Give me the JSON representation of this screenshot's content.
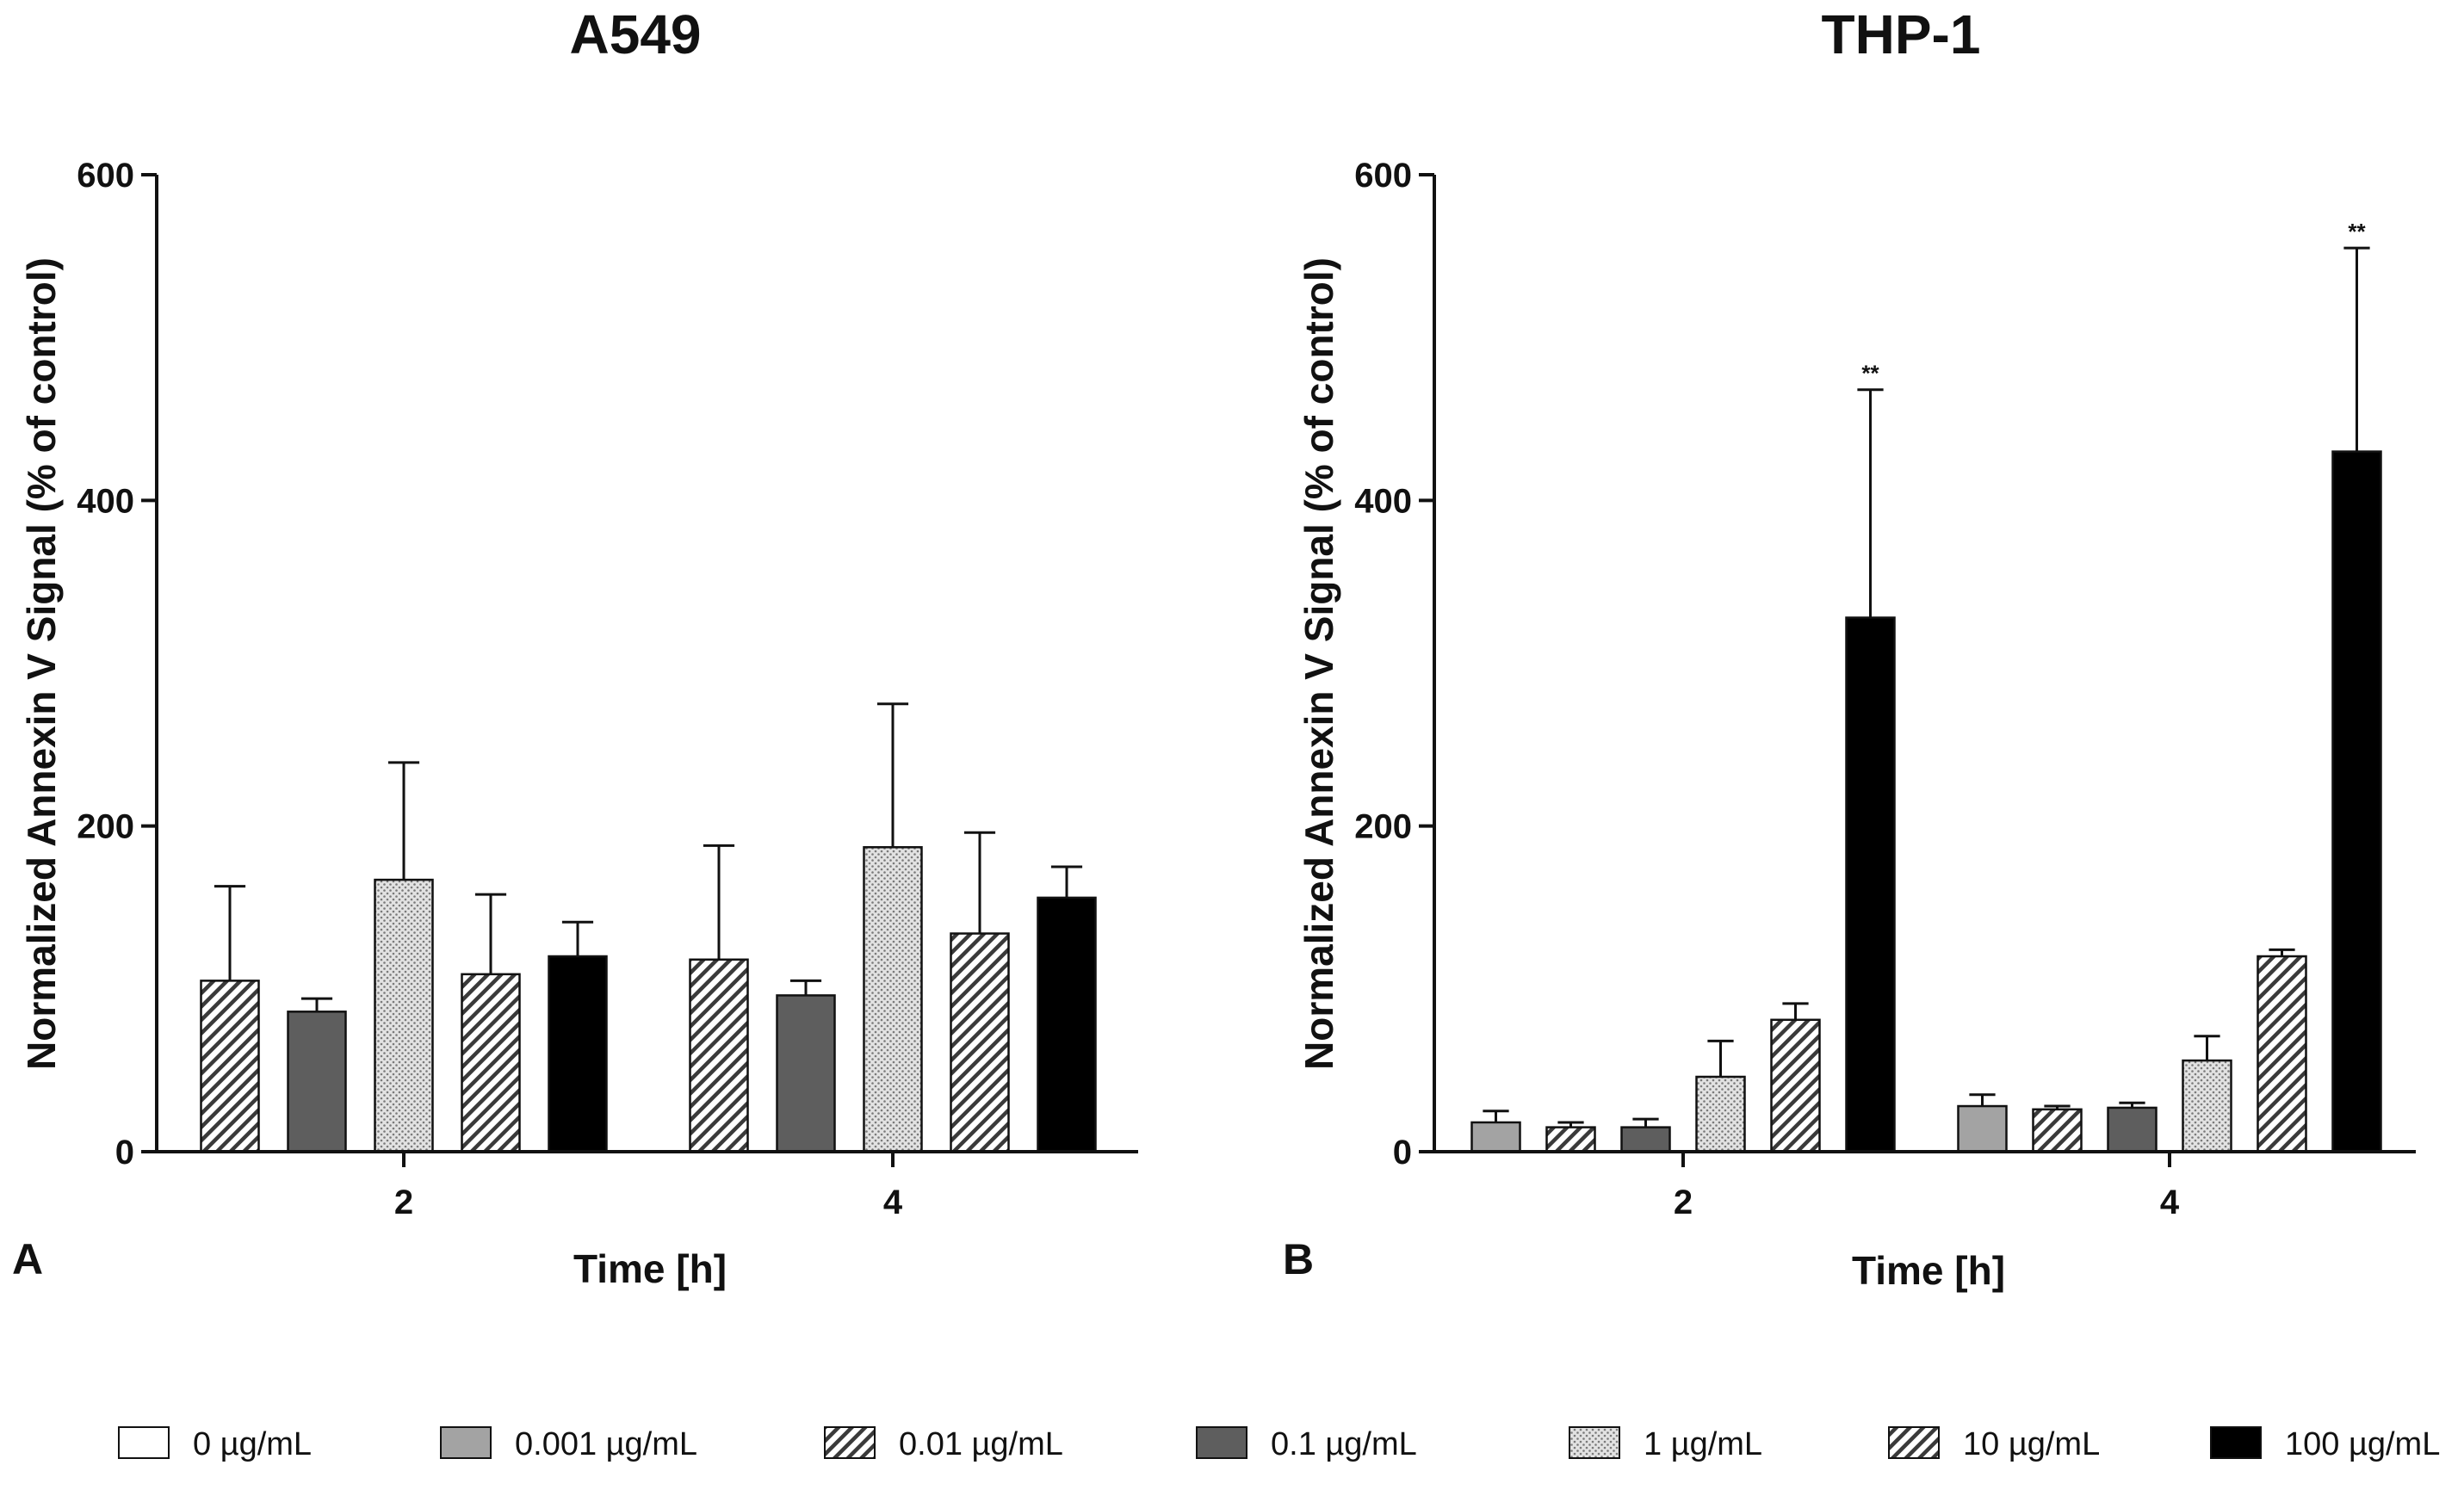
{
  "legend": [
    {
      "label": "0 µg/mL",
      "style": "white"
    },
    {
      "label": "0.001 µg/mL",
      "style": "lightgray"
    },
    {
      "label": "0.01 µg/mL",
      "style": "hatch"
    },
    {
      "label": "0.1 µg/mL",
      "style": "darkgray"
    },
    {
      "label": "1 µg/mL",
      "style": "dots"
    },
    {
      "label": "10 µg/mL",
      "style": "hatch"
    },
    {
      "label": "100 µg/mL",
      "style": "black"
    }
  ],
  "colors": {
    "white": "#ffffff",
    "lightgray": "#a3a3a3",
    "darkgray": "#5e5e5e",
    "black": "#000000",
    "hatch_line": "#3a3a3a",
    "dots_bg": "#e2e2e2",
    "axis": "#111111"
  },
  "chart_data": [
    {
      "type": "bar",
      "panel": "A",
      "title": "A549",
      "xlabel": "Time [h]",
      "ylabel": "Normalized Annexin V Signal (% of control)",
      "categories": [
        "2",
        "4"
      ],
      "ylim": [
        0,
        600
      ],
      "yticks": [
        0,
        200,
        400,
        600
      ],
      "series": [
        {
          "name": "0.01 µg/mL",
          "style": "hatch",
          "values": [
            105,
            118
          ],
          "errors": [
            58,
            70
          ],
          "sig": [
            "",
            ""
          ]
        },
        {
          "name": "0.1 µg/mL",
          "style": "darkgray",
          "values": [
            86,
            96
          ],
          "errors": [
            8,
            9
          ],
          "sig": [
            "",
            ""
          ]
        },
        {
          "name": "1 µg/mL",
          "style": "dots",
          "values": [
            167,
            187
          ],
          "errors": [
            72,
            88
          ],
          "sig": [
            "",
            ""
          ]
        },
        {
          "name": "10 µg/mL",
          "style": "hatch",
          "values": [
            109,
            134
          ],
          "errors": [
            49,
            62
          ],
          "sig": [
            "",
            ""
          ]
        },
        {
          "name": "100 µg/mL",
          "style": "black",
          "values": [
            120,
            156
          ],
          "errors": [
            21,
            19
          ],
          "sig": [
            "",
            ""
          ]
        }
      ]
    },
    {
      "type": "bar",
      "panel": "B",
      "title": "THP-1",
      "xlabel": "Time [h]",
      "ylabel": "Normalized Annexin V Signal (% of control)",
      "categories": [
        "2",
        "4"
      ],
      "ylim": [
        0,
        600
      ],
      "yticks": [
        0,
        200,
        400,
        600
      ],
      "series": [
        {
          "name": "0.001 µg/mL",
          "style": "lightgray",
          "values": [
            18,
            28
          ],
          "errors": [
            7,
            7
          ],
          "sig": [
            "",
            ""
          ]
        },
        {
          "name": "0.01 µg/mL",
          "style": "hatch",
          "values": [
            15,
            26
          ],
          "errors": [
            3,
            2
          ],
          "sig": [
            "",
            ""
          ]
        },
        {
          "name": "0.1 µg/mL",
          "style": "darkgray",
          "values": [
            15,
            27
          ],
          "errors": [
            5,
            3
          ],
          "sig": [
            "",
            ""
          ]
        },
        {
          "name": "1 µg/mL",
          "style": "dots",
          "values": [
            46,
            56
          ],
          "errors": [
            22,
            15
          ],
          "sig": [
            "",
            ""
          ]
        },
        {
          "name": "10 µg/mL",
          "style": "hatch",
          "values": [
            81,
            120
          ],
          "errors": [
            10,
            4
          ],
          "sig": [
            "",
            ""
          ]
        },
        {
          "name": "100 µg/mL",
          "style": "black",
          "values": [
            328,
            430
          ],
          "errors": [
            140,
            125
          ],
          "sig": [
            "**",
            "**"
          ]
        }
      ]
    }
  ]
}
